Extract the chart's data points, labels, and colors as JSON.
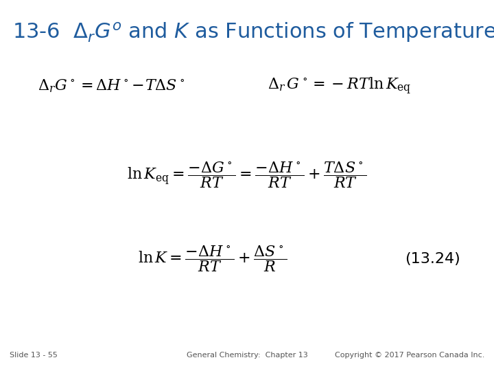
{
  "title": "13-6  $\\Delta_r G^o$ and $K$ as Functions of Temperature",
  "title_color": "#1F5C9E",
  "title_fontsize": 22,
  "bg_color": "#FFFFFF",
  "text_color": "#000000",
  "eq1_left": "$\\Delta_r G^\\circ = \\Delta H^\\circ\\!-\\!T\\Delta S^\\circ$",
  "eq1_right": "$\\Delta_r\\, G^\\circ = -RT \\ln K_{\\mathrm{eq}}$",
  "eq2": "$\\ln K_{\\mathrm{eq}} = \\dfrac{-\\Delta G^\\circ}{RT} = \\dfrac{-\\Delta H^\\circ}{RT} + \\dfrac{T\\Delta S^\\circ}{RT}$",
  "eq3": "$\\ln K = \\dfrac{-\\Delta H^\\circ}{RT} + \\dfrac{\\Delta S^\\circ}{R}$",
  "eq3_label": "(13.24)",
  "footer_left": "Slide 13 - 55",
  "footer_center": "General Chemistry:  Chapter 13",
  "footer_right": "Copyright © 2017 Pearson Canada Inc.",
  "eq_fontsize": 16,
  "footer_fontsize": 8
}
